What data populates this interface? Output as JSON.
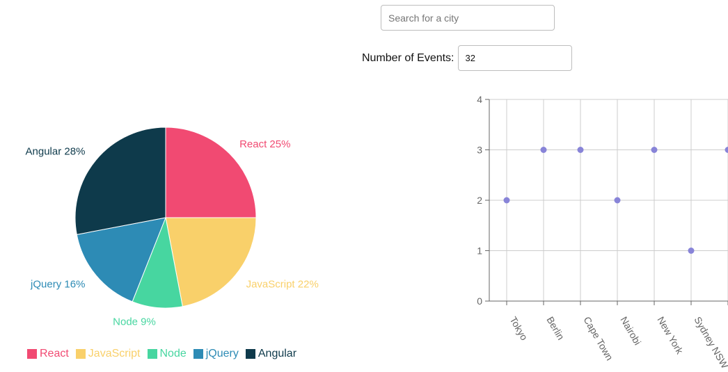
{
  "search": {
    "placeholder": "Search for a city",
    "value": ""
  },
  "events": {
    "label": "Number of Events:",
    "value": "32"
  },
  "chart_data": [
    {
      "type": "pie",
      "title": "",
      "categories": [
        "React",
        "JavaScript",
        "Node",
        "jQuery",
        "Angular"
      ],
      "values": [
        25,
        22,
        9,
        16,
        28
      ],
      "labels": [
        "React 25%",
        "JavaScript 22%",
        "Node 9%",
        "jQuery 16%",
        "Angular 28%"
      ],
      "colors": [
        "#f14a72",
        "#f9d06a",
        "#47d6a0",
        "#2d8bb5",
        "#0e3a4b"
      ],
      "legend": "bottom"
    },
    {
      "type": "scatter",
      "title": "",
      "xlabel": "",
      "ylabel": "",
      "x": [
        "Tokyo",
        "Berlin",
        "Cape Town",
        "Nairobi",
        "New York",
        "Sydney NSW",
        ""
      ],
      "y": [
        2,
        3,
        3,
        2,
        3,
        1,
        3
      ],
      "ylim": [
        0,
        4
      ],
      "yticks": [
        0,
        1,
        2,
        3,
        4
      ],
      "grid": true,
      "point_color": "#8884d8"
    }
  ]
}
